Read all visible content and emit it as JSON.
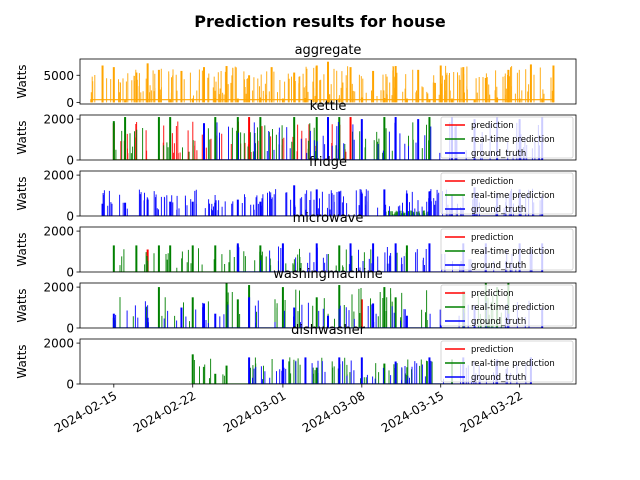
{
  "figure": {
    "title": "Prediction results for house"
  },
  "x_axis": {
    "type": "date",
    "range": [
      "2024-02-12",
      "2024-03-27"
    ],
    "tick_dates": [
      "2024-02-15",
      "2024-02-22",
      "2024-03-01",
      "2024-03-08",
      "2024-03-15",
      "2024-03-22"
    ],
    "tick_labels": [
      "2024-02-15",
      "2024-02-22",
      "2024-03-01",
      "2024-03-08",
      "2024-03-15",
      "2024-03-22"
    ],
    "tick_label_rotation_deg": 30
  },
  "legend": {
    "placement": "right",
    "entries": [
      "prediction",
      "real-time prediction",
      "ground_truth"
    ]
  },
  "colors": {
    "aggregate": "#ffa500",
    "prediction": "#ff0000",
    "realtime": "#008000",
    "ground_truth": "#0000ff"
  },
  "chart_data": [
    {
      "type": "line",
      "title": "aggregate",
      "ylabel": "Watts",
      "ylim": [
        -300,
        8000
      ],
      "yticks": [
        0,
        5000
      ],
      "ytick_labels": [
        "0",
        "5000"
      ],
      "series": [
        {
          "name": "aggregate",
          "color": "#ffa500",
          "x": [
            "2024-02-13",
            "2024-02-14",
            "2024-02-14",
            "2024-02-15",
            "2024-02-15",
            "2024-02-16",
            "2024-02-17",
            "2024-02-18",
            "2024-02-18",
            "2024-02-19",
            "2024-02-20",
            "2024-02-21",
            "2024-02-22",
            "2024-02-23",
            "2024-02-24",
            "2024-02-25",
            "2024-02-26",
            "2024-02-27",
            "2024-02-28",
            "2024-02-29",
            "2024-03-01",
            "2024-03-02",
            "2024-03-03",
            "2024-03-04",
            "2024-03-05",
            "2024-03-06",
            "2024-03-07",
            "2024-03-08",
            "2024-03-09",
            "2024-03-10",
            "2024-03-11",
            "2024-03-12",
            "2024-03-13",
            "2024-03-14",
            "2024-03-15",
            "2024-03-16",
            "2024-03-17",
            "2024-03-18",
            "2024-03-19",
            "2024-03-20",
            "2024-03-21",
            "2024-03-22",
            "2024-03-23",
            "2024-03-24",
            "2024-03-25"
          ],
          "y": [
            600,
            6800,
            700,
            6500,
            500,
            400,
            5500,
            7200,
            600,
            6000,
            600,
            5800,
            700,
            6500,
            800,
            6700,
            700,
            5000,
            900,
            6500,
            700,
            5500,
            800,
            6800,
            7500,
            700,
            6500,
            900,
            5800,
            800,
            6700,
            700,
            6000,
            600,
            6800,
            700,
            6500,
            500,
            4500,
            900,
            6000,
            700,
            7000,
            700,
            6800
          ]
        }
      ]
    },
    {
      "type": "line",
      "title": "kettle",
      "ylabel": "Watts",
      "ylim": [
        0,
        2200
      ],
      "yticks": [
        0,
        2000
      ],
      "ytick_labels": [
        "0",
        "2000"
      ],
      "series": [
        {
          "name": "prediction",
          "color": "#ff0000",
          "x": [
            "2024-02-15",
            "2024-02-27",
            "2024-03-07"
          ],
          "y": [
            1800,
            2100,
            2100
          ]
        },
        {
          "name": "real-time prediction",
          "color": "#008000",
          "x": [
            "2024-02-15",
            "2024-02-16",
            "2024-02-19",
            "2024-02-20",
            "2024-02-24",
            "2024-02-26",
            "2024-02-28",
            "2024-03-02",
            "2024-03-04",
            "2024-03-06",
            "2024-03-10",
            "2024-03-14"
          ],
          "y": [
            1900,
            2100,
            2100,
            2100,
            2100,
            2100,
            2100,
            2100,
            2100,
            2100,
            2100,
            2100
          ]
        },
        {
          "name": "ground_truth",
          "color": "#0000ff",
          "x": [
            "2024-02-23",
            "2024-03-05",
            "2024-03-08",
            "2024-03-11",
            "2024-03-13",
            "2024-03-16",
            "2024-03-18",
            "2024-03-20",
            "2024-03-22",
            "2024-03-24"
          ],
          "y": [
            1800,
            2100,
            2000,
            2100,
            2000,
            2100,
            2000,
            2100,
            2000,
            2100
          ]
        }
      ]
    },
    {
      "type": "line",
      "title": "fridge",
      "ylabel": "Watts",
      "ylim": [
        0,
        2200
      ],
      "yticks": [
        0,
        2000
      ],
      "ytick_labels": [
        "0",
        "2000"
      ],
      "series": [
        {
          "name": "prediction",
          "color": "#ff0000",
          "x": [],
          "y": []
        },
        {
          "name": "real-time prediction",
          "color": "#008000",
          "x": [
            "2024-03-10",
            "2024-03-14"
          ],
          "y": [
            300,
            300
          ]
        },
        {
          "name": "ground_truth",
          "color": "#0000ff",
          "x": [
            "2024-02-14",
            "2024-02-16",
            "2024-02-18",
            "2024-02-20",
            "2024-02-22",
            "2024-02-24",
            "2024-02-26",
            "2024-02-28",
            "2024-03-02",
            "2024-03-04",
            "2024-03-06",
            "2024-03-08",
            "2024-03-10",
            "2024-03-12",
            "2024-03-14",
            "2024-03-16",
            "2024-03-18",
            "2024-03-20",
            "2024-03-22",
            "2024-03-24"
          ],
          "y": [
            600,
            650,
            800,
            700,
            700,
            650,
            800,
            700,
            1500,
            1300,
            1200,
            1100,
            1300,
            1100,
            1200,
            1000,
            1400,
            1100,
            1300,
            1000
          ]
        }
      ]
    },
    {
      "type": "line",
      "title": "microwave",
      "ylabel": "Watts",
      "ylim": [
        0,
        2200
      ],
      "yticks": [
        0,
        2000
      ],
      "ytick_labels": [
        "0",
        "2000"
      ],
      "series": [
        {
          "name": "prediction",
          "color": "#ff0000",
          "x": [
            "2024-02-18"
          ],
          "y": [
            1100
          ]
        },
        {
          "name": "real-time prediction",
          "color": "#008000",
          "x": [
            "2024-02-15",
            "2024-02-17",
            "2024-02-19",
            "2024-02-20",
            "2024-02-22",
            "2024-02-24",
            "2024-02-26",
            "2024-02-28",
            "2024-03-06",
            "2024-03-12"
          ],
          "y": [
            1300,
            1300,
            1300,
            1300,
            1300,
            1300,
            1300,
            1300,
            1300,
            1300
          ]
        },
        {
          "name": "ground_truth",
          "color": "#0000ff",
          "x": [
            "2024-02-26",
            "2024-03-01",
            "2024-03-04",
            "2024-03-07",
            "2024-03-09",
            "2024-03-11",
            "2024-03-14",
            "2024-03-17",
            "2024-03-19",
            "2024-03-22",
            "2024-03-24"
          ],
          "y": [
            1400,
            1400,
            1400,
            1400,
            1400,
            1400,
            1400,
            1400,
            1400,
            1400,
            1400
          ]
        }
      ]
    },
    {
      "type": "line",
      "title": "washingmachine",
      "ylabel": "Watts",
      "ylim": [
        0,
        2200
      ],
      "yticks": [
        0,
        2000
      ],
      "ytick_labels": [
        "0",
        "2000"
      ],
      "series": [
        {
          "name": "prediction",
          "color": "#ff0000",
          "x": [
            "2024-03-08"
          ],
          "y": [
            1400
          ]
        },
        {
          "name": "real-time prediction",
          "color": "#008000",
          "x": [
            "2024-02-15",
            "2024-02-19",
            "2024-02-22",
            "2024-02-25",
            "2024-02-26",
            "2024-02-27",
            "2024-03-01",
            "2024-03-04",
            "2024-03-06",
            "2024-03-10",
            "2024-03-11",
            "2024-03-17",
            "2024-03-19",
            "2024-03-20",
            "2024-03-21"
          ],
          "y": [
            500,
            2000,
            1500,
            2200,
            1400,
            2100,
            2000,
            1500,
            2100,
            2000,
            1500,
            1800,
            2200,
            2000,
            2200
          ]
        },
        {
          "name": "ground_truth",
          "color": "#0000ff",
          "x": [
            "2024-02-15",
            "2024-02-18",
            "2024-02-21",
            "2024-02-23",
            "2024-02-24",
            "2024-02-27",
            "2024-03-02",
            "2024-03-05",
            "2024-03-09",
            "2024-03-12",
            "2024-03-15",
            "2024-03-18",
            "2024-03-21",
            "2024-03-24"
          ],
          "y": [
            700,
            500,
            1000,
            1200,
            700,
            1500,
            1000,
            600,
            1200,
            600,
            900,
            1100,
            700,
            1000
          ]
        }
      ]
    },
    {
      "type": "line",
      "title": "dishwasher",
      "ylabel": "Watts",
      "ylim": [
        0,
        2200
      ],
      "yticks": [
        0,
        2000
      ],
      "ytick_labels": [
        "0",
        "2000"
      ],
      "series": [
        {
          "name": "prediction",
          "color": "#ff0000",
          "x": [],
          "y": []
        },
        {
          "name": "real-time prediction",
          "color": "#008000",
          "x": [
            "2024-02-22",
            "2024-02-24",
            "2024-02-25",
            "2024-03-04",
            "2024-03-10",
            "2024-03-16"
          ],
          "y": [
            1450,
            500,
            900,
            800,
            1000,
            1200
          ]
        },
        {
          "name": "ground_truth",
          "color": "#0000ff",
          "x": [
            "2024-02-27",
            "2024-03-01",
            "2024-03-03",
            "2024-03-06",
            "2024-03-08",
            "2024-03-11",
            "2024-03-14",
            "2024-03-17",
            "2024-03-20",
            "2024-03-23"
          ],
          "y": [
            1300,
            1200,
            1300,
            1300,
            1300,
            1100,
            1300,
            1300,
            1200,
            1300
          ]
        }
      ]
    }
  ]
}
